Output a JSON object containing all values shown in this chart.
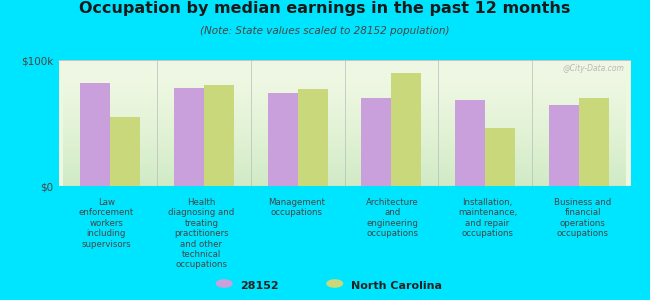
{
  "title": "Occupation by median earnings in the past 12 months",
  "subtitle": "(Note: State values scaled to 28152 population)",
  "categories": [
    "Law\nenforcement\nworkers\nincluding\nsupervisors",
    "Health\ndiagnosing and\ntreating\npractitioners\nand other\ntechnical\noccupations",
    "Management\noccupations",
    "Architecture\nand\nengineering\noccupations",
    "Installation,\nmaintenance,\nand repair\noccupations",
    "Business and\nfinancial\noperations\noccupations"
  ],
  "values_28152": [
    82000,
    78000,
    74000,
    70000,
    68000,
    64000
  ],
  "values_nc": [
    55000,
    80000,
    77000,
    90000,
    46000,
    70000
  ],
  "color_28152": "#c9a0dc",
  "color_nc": "#c8d87a",
  "background_figure": "#00e5ff",
  "ylim": [
    0,
    100000
  ],
  "ytick_labels": [
    "$0",
    "$100k"
  ],
  "legend_28152": "28152",
  "legend_nc": "North Carolina",
  "watermark": "@City-Data.com",
  "title_color": "#1a1a1a",
  "subtitle_color": "#444444",
  "label_color": "#444444"
}
